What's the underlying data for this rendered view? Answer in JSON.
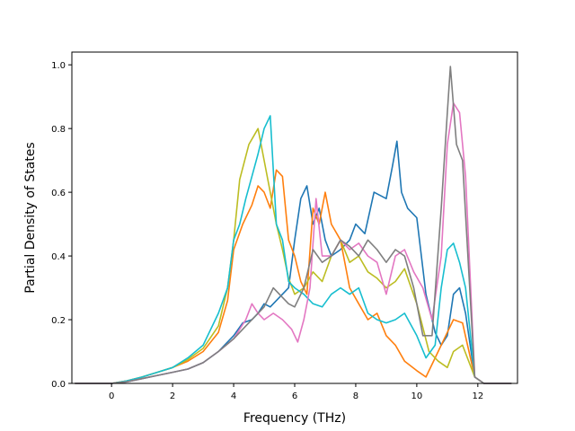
{
  "chart_data": {
    "type": "line",
    "title": "",
    "xlabel": "Frequency (THz)",
    "ylabel": "Partial Density of States",
    "xlim": [
      -1.3,
      13.3
    ],
    "ylim": [
      0.0,
      1.04
    ],
    "xticks": [
      0,
      2,
      4,
      6,
      8,
      10,
      12
    ],
    "yticks": [
      0.0,
      0.2,
      0.4,
      0.6,
      0.8,
      1.0
    ],
    "xtick_labels": [
      "0",
      "2",
      "4",
      "6",
      "8",
      "10",
      "12"
    ],
    "ytick_labels": [
      "0.0",
      "0.2",
      "0.4",
      "0.6",
      "0.8",
      "1.0"
    ],
    "grid": false,
    "legend": false,
    "series": [
      {
        "color": "#1f77b4",
        "x": [
          -1.2,
          0,
          0.5,
          1,
          1.5,
          2,
          2.5,
          3,
          3.5,
          4,
          4.3,
          4.6,
          4.8,
          5,
          5.2,
          5.5,
          5.8,
          6.0,
          6.2,
          6.4,
          6.6,
          6.8,
          7.0,
          7.2,
          7.5,
          7.8,
          8.0,
          8.3,
          8.6,
          9.0,
          9.2,
          9.35,
          9.5,
          9.7,
          10.0,
          10.3,
          10.6,
          10.8,
          11.0,
          11.2,
          11.4,
          11.6,
          11.9,
          12.2,
          13.1
        ],
        "y": [
          0,
          0,
          0.005,
          0.015,
          0.025,
          0.035,
          0.045,
          0.065,
          0.1,
          0.15,
          0.19,
          0.2,
          0.22,
          0.25,
          0.24,
          0.27,
          0.3,
          0.45,
          0.58,
          0.62,
          0.5,
          0.55,
          0.45,
          0.4,
          0.42,
          0.45,
          0.5,
          0.47,
          0.6,
          0.58,
          0.68,
          0.76,
          0.6,
          0.55,
          0.52,
          0.28,
          0.16,
          0.12,
          0.15,
          0.28,
          0.3,
          0.22,
          0.02,
          0,
          0
        ]
      },
      {
        "color": "#ff7f0e",
        "x": [
          -1.2,
          0,
          0.5,
          1,
          1.5,
          2,
          2.5,
          3,
          3.5,
          3.8,
          4.0,
          4.3,
          4.6,
          4.8,
          5.0,
          5.2,
          5.4,
          5.6,
          5.8,
          6.0,
          6.2,
          6.4,
          6.6,
          6.8,
          7.0,
          7.2,
          7.5,
          7.8,
          8.1,
          8.4,
          8.7,
          9.0,
          9.3,
          9.6,
          10.0,
          10.3,
          10.6,
          10.8,
          11.0,
          11.2,
          11.5,
          11.9,
          12.2,
          13.1
        ],
        "y": [
          0,
          0,
          0.008,
          0.02,
          0.035,
          0.05,
          0.07,
          0.1,
          0.16,
          0.26,
          0.42,
          0.5,
          0.56,
          0.62,
          0.6,
          0.55,
          0.67,
          0.65,
          0.45,
          0.4,
          0.32,
          0.28,
          0.55,
          0.5,
          0.6,
          0.5,
          0.45,
          0.3,
          0.25,
          0.2,
          0.22,
          0.15,
          0.12,
          0.07,
          0.04,
          0.02,
          0.08,
          0.12,
          0.16,
          0.2,
          0.19,
          0.02,
          0,
          0
        ]
      },
      {
        "color": "#bcbd22",
        "x": [
          -1.2,
          0,
          0.5,
          1,
          1.5,
          2,
          2.5,
          3,
          3.5,
          3.8,
          4.0,
          4.2,
          4.5,
          4.8,
          5.0,
          5.2,
          5.4,
          5.6,
          5.8,
          6.0,
          6.3,
          6.6,
          6.9,
          7.2,
          7.5,
          7.8,
          8.1,
          8.4,
          8.7,
          9.0,
          9.3,
          9.6,
          10.0,
          10.4,
          10.7,
          11.0,
          11.2,
          11.5,
          11.9,
          12.2,
          13.1
        ],
        "y": [
          0,
          0,
          0.008,
          0.02,
          0.035,
          0.05,
          0.075,
          0.11,
          0.18,
          0.3,
          0.45,
          0.64,
          0.75,
          0.8,
          0.7,
          0.6,
          0.5,
          0.42,
          0.33,
          0.28,
          0.3,
          0.35,
          0.32,
          0.4,
          0.45,
          0.38,
          0.4,
          0.35,
          0.33,
          0.3,
          0.32,
          0.36,
          0.25,
          0.1,
          0.07,
          0.05,
          0.1,
          0.12,
          0.02,
          0,
          0
        ]
      },
      {
        "color": "#17becf",
        "x": [
          -1.2,
          0,
          0.5,
          1,
          1.5,
          2,
          2.5,
          3,
          3.5,
          3.8,
          4.0,
          4.2,
          4.4,
          4.6,
          4.8,
          5.0,
          5.2,
          5.4,
          5.6,
          5.8,
          6.0,
          6.3,
          6.6,
          6.9,
          7.2,
          7.5,
          7.8,
          8.1,
          8.4,
          8.7,
          9.0,
          9.3,
          9.6,
          10.0,
          10.3,
          10.6,
          10.8,
          11.0,
          11.2,
          11.4,
          11.6,
          11.9,
          12.2,
          13.1
        ],
        "y": [
          0,
          0,
          0.008,
          0.02,
          0.035,
          0.05,
          0.08,
          0.12,
          0.22,
          0.3,
          0.45,
          0.5,
          0.58,
          0.65,
          0.72,
          0.8,
          0.84,
          0.5,
          0.45,
          0.32,
          0.3,
          0.28,
          0.25,
          0.24,
          0.28,
          0.3,
          0.28,
          0.3,
          0.22,
          0.2,
          0.19,
          0.2,
          0.22,
          0.15,
          0.08,
          0.12,
          0.3,
          0.42,
          0.44,
          0.38,
          0.3,
          0.02,
          0,
          0
        ]
      },
      {
        "color": "#e377c2",
        "x": [
          -1.2,
          0,
          0.5,
          1,
          1.5,
          2,
          2.5,
          3,
          3.5,
          4,
          4.4,
          4.6,
          4.8,
          5.0,
          5.3,
          5.6,
          5.9,
          6.1,
          6.3,
          6.5,
          6.7,
          6.9,
          7.2,
          7.5,
          7.8,
          8.1,
          8.4,
          8.7,
          9.0,
          9.3,
          9.6,
          9.9,
          10.2,
          10.5,
          10.8,
          11.0,
          11.2,
          11.4,
          11.6,
          11.9,
          12.2,
          13.1
        ],
        "y": [
          0,
          0,
          0.005,
          0.015,
          0.025,
          0.035,
          0.045,
          0.065,
          0.1,
          0.14,
          0.2,
          0.25,
          0.22,
          0.2,
          0.22,
          0.2,
          0.17,
          0.13,
          0.2,
          0.3,
          0.58,
          0.4,
          0.4,
          0.45,
          0.42,
          0.44,
          0.4,
          0.38,
          0.28,
          0.4,
          0.42,
          0.35,
          0.3,
          0.2,
          0.4,
          0.75,
          0.88,
          0.85,
          0.65,
          0.02,
          0,
          0
        ]
      },
      {
        "color": "#7f7f7f",
        "x": [
          -1.2,
          0,
          0.5,
          1,
          1.5,
          2,
          2.5,
          3,
          3.5,
          4,
          4.4,
          4.8,
          5.0,
          5.3,
          5.5,
          5.8,
          6.0,
          6.3,
          6.6,
          6.9,
          7.2,
          7.5,
          7.8,
          8.1,
          8.4,
          8.7,
          9.0,
          9.3,
          9.6,
          9.9,
          10.2,
          10.5,
          10.8,
          11.0,
          11.1,
          11.3,
          11.5,
          11.9,
          12.2,
          13.1
        ],
        "y": [
          0,
          0,
          0.005,
          0.015,
          0.025,
          0.035,
          0.045,
          0.065,
          0.1,
          0.14,
          0.18,
          0.22,
          0.24,
          0.3,
          0.28,
          0.25,
          0.24,
          0.3,
          0.42,
          0.38,
          0.4,
          0.45,
          0.43,
          0.4,
          0.45,
          0.42,
          0.38,
          0.42,
          0.4,
          0.3,
          0.15,
          0.15,
          0.55,
          0.85,
          0.995,
          0.75,
          0.7,
          0.02,
          0,
          0
        ]
      }
    ]
  }
}
